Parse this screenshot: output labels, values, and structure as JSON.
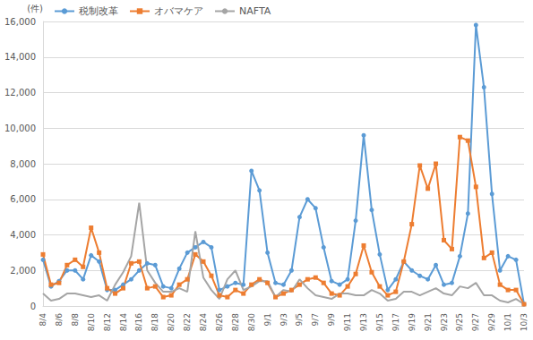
{
  "chart_data": {
    "type": "line",
    "y_label": "(件)",
    "categories": [
      "8/4",
      null,
      "8/6",
      null,
      "8/8",
      null,
      "8/10",
      null,
      "8/12",
      null,
      "8/14",
      null,
      "8/16",
      null,
      "8/18",
      null,
      "8/20",
      null,
      "8/22",
      null,
      "8/24",
      null,
      "8/26",
      null,
      "8/28",
      null,
      "8/30",
      null,
      "9/1",
      null,
      "9/3",
      null,
      "9/5",
      null,
      "9/7",
      null,
      "9/9",
      null,
      "9/11",
      null,
      "9/13",
      null,
      "9/15",
      null,
      "9/17",
      null,
      "9/19",
      null,
      "9/21",
      null,
      "9/23",
      null,
      "9/25",
      null,
      "9/27",
      null,
      "9/29",
      null,
      "10/1",
      null,
      "10/3"
    ],
    "series": [
      {
        "name": "税制改革",
        "color": "#5b9bd5",
        "marker": "circle",
        "values": [
          2600,
          1100,
          1400,
          2000,
          2000,
          1500,
          2850,
          2500,
          900,
          900,
          1200,
          1500,
          2000,
          2400,
          2300,
          1100,
          1000,
          2100,
          3000,
          3300,
          3600,
          3300,
          900,
          1100,
          1300,
          1200,
          7600,
          6500,
          3000,
          1300,
          1200,
          2000,
          5000,
          6000,
          5500,
          3300,
          1400,
          1200,
          1500,
          4800,
          9600,
          5400,
          2900,
          900,
          1500,
          2500,
          2000,
          1700,
          1500,
          2300,
          1200,
          1300,
          2800,
          5200,
          15800,
          12300,
          6300,
          2000,
          2800,
          2600,
          100
        ]
      },
      {
        "name": "オバマケア",
        "color": "#ed7d31",
        "marker": "square",
        "values": [
          2900,
          1200,
          1300,
          2300,
          2600,
          2200,
          4400,
          3000,
          1000,
          700,
          1000,
          2400,
          2500,
          1000,
          1100,
          500,
          600,
          1200,
          1500,
          2900,
          2500,
          1700,
          600,
          500,
          900,
          700,
          1200,
          1500,
          1300,
          500,
          700,
          900,
          1200,
          1500,
          1600,
          1300,
          700,
          600,
          1100,
          1800,
          3400,
          1900,
          1100,
          600,
          800,
          2500,
          4600,
          7900,
          6600,
          8000,
          3700,
          3200,
          9500,
          9300,
          6700,
          2700,
          3000,
          1200,
          900,
          900,
          100
        ]
      },
      {
        "name": "NAFTA",
        "color": "#a5a5a5",
        "marker": "none",
        "values": [
          700,
          300,
          400,
          700,
          700,
          600,
          500,
          600,
          300,
          1200,
          1900,
          2800,
          5800,
          2000,
          1300,
          800,
          800,
          1000,
          800,
          4200,
          1600,
          900,
          400,
          1500,
          2000,
          900,
          1100,
          1400,
          1400,
          500,
          900,
          800,
          1500,
          1000,
          600,
          500,
          400,
          700,
          700,
          600,
          600,
          900,
          700,
          300,
          400,
          800,
          800,
          600,
          800,
          1000,
          700,
          600,
          1100,
          1000,
          1300,
          600,
          600,
          300,
          200,
          400,
          100
        ]
      }
    ],
    "ylim": [
      0,
      16000
    ],
    "yticks": [
      0,
      {
        "value": 2000,
        "label": "2,000"
      },
      {
        "value": 4000,
        "label": "4,000"
      },
      {
        "value": 6000,
        "label": "6,000"
      },
      {
        "value": 8000,
        "label": "8,000"
      },
      {
        "value": 10000,
        "label": "10,000"
      },
      {
        "value": 12000,
        "label": "12,000"
      },
      {
        "value": 14000,
        "label": "14,000"
      },
      {
        "value": 16000,
        "label": "16,000"
      }
    ],
    "grid": true,
    "legend": "top-left"
  }
}
